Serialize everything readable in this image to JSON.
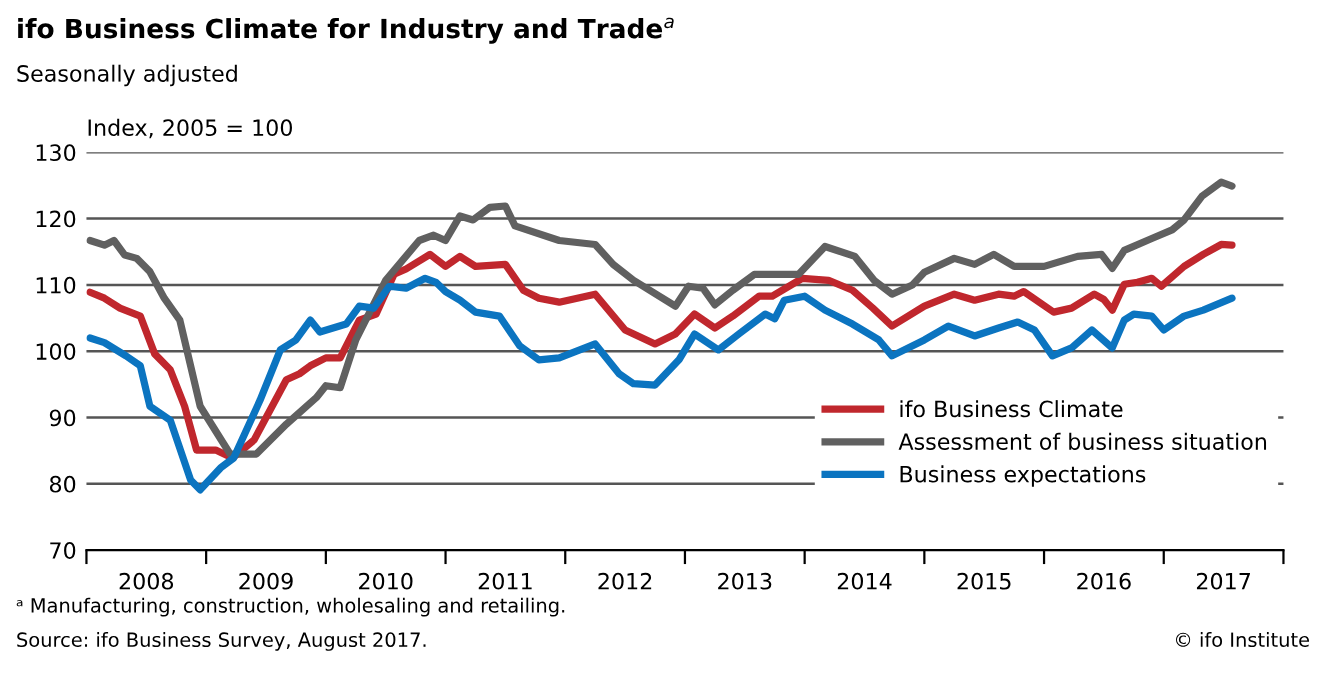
{
  "chart_data": {
    "type": "line",
    "title": "ifo Business Climate for Industry and Trade$^{a}$",
    "subtitle": "Seasonally adjusted",
    "ylabel": "Index, 2005 = 100",
    "annotations": [
      "ᵃ Manufacturing, construction, wholesaling and retailing.",
      "Source: ifo Business Survey, August 2017.",
      "© ifo Institute"
    ],
    "xlim": [
      2008,
      2018
    ],
    "xticks": [
      {
        "value": 2008,
        "label": null
      },
      {
        "value": 2008.5,
        "label": "2008"
      },
      {
        "value": 2009,
        "label": null
      },
      {
        "value": 2009.5,
        "label": "2009"
      },
      {
        "value": 2010,
        "label": null
      },
      {
        "value": 2010.5,
        "label": "2010"
      },
      {
        "value": 2011,
        "label": null
      },
      {
        "value": 2011.5,
        "label": "2011"
      },
      {
        "value": 2012,
        "label": null
      },
      {
        "value": 2012.5,
        "label": "2012"
      },
      {
        "value": 2013,
        "label": null
      },
      {
        "value": 2013.5,
        "label": "2013"
      },
      {
        "value": 2014,
        "label": null
      },
      {
        "value": 2014.5,
        "label": "2014"
      },
      {
        "value": 2015,
        "label": null
      },
      {
        "value": 2015.5,
        "label": "2015"
      },
      {
        "value": 2016,
        "label": null
      },
      {
        "value": 2016.5,
        "label": "2016"
      },
      {
        "value": 2017,
        "label": null
      },
      {
        "value": 2017.5,
        "label": "2017"
      },
      {
        "value": 2018,
        "label": null
      }
    ],
    "ylim": [
      70,
      130
    ],
    "yticks": [
      70,
      80,
      90,
      100,
      110,
      120,
      130
    ],
    "grid": "y",
    "legend": "bottom right",
    "series": [
      {
        "name": "ifo Business Climate",
        "color": "#c0272d",
        "x": [
          2008.03,
          2008.15,
          2008.28,
          2008.45,
          2008.57,
          2008.7,
          2008.82,
          2008.92,
          2009.08,
          2009.22,
          2009.4,
          2009.67,
          2009.78,
          2009.87,
          2010.0,
          2010.12,
          2010.28,
          2010.42,
          2010.57,
          2010.67,
          2010.87,
          2011.0,
          2011.12,
          2011.25,
          2011.5,
          2011.65,
          2011.78,
          2011.95,
          2012.25,
          2012.5,
          2012.75,
          2012.92,
          2013.08,
          2013.25,
          2013.4,
          2013.62,
          2013.73,
          2013.98,
          2014.2,
          2014.4,
          2014.57,
          2014.73,
          2015.0,
          2015.25,
          2015.42,
          2015.62,
          2015.75,
          2015.83,
          2016.08,
          2016.23,
          2016.42,
          2016.5,
          2016.57,
          2016.67,
          2016.78,
          2016.9,
          2016.98,
          2017.17,
          2017.33,
          2017.48,
          2017.57
        ],
        "values": [
          108.9,
          108,
          106.5,
          105.3,
          99.6,
          97.2,
          91.7,
          85.1,
          85.1,
          83.9,
          86.6,
          95.7,
          96.6,
          97.8,
          99,
          99,
          104.7,
          105.6,
          111.6,
          112.4,
          114.6,
          112.8,
          114.3,
          112.8,
          113.1,
          109.2,
          108,
          107.4,
          108.6,
          103.2,
          101.1,
          102.6,
          105.6,
          103.5,
          105.3,
          108.3,
          108.3,
          111,
          110.7,
          109.2,
          106.5,
          103.8,
          106.8,
          108.6,
          107.7,
          108.6,
          108.3,
          109,
          105.9,
          106.5,
          108.6,
          107.8,
          106.2,
          110.1,
          110.4,
          111,
          109.8,
          112.8,
          114.6,
          116.1,
          116
        ]
      },
      {
        "name": "Assessment of business situation",
        "color": "#606060",
        "x": [
          2008.03,
          2008.15,
          2008.23,
          2008.32,
          2008.42,
          2008.53,
          2008.65,
          2008.78,
          2008.95,
          2009.2,
          2009.42,
          2009.67,
          2009.92,
          2010.0,
          2010.12,
          2010.25,
          2010.5,
          2010.78,
          2010.9,
          2011.0,
          2011.12,
          2011.23,
          2011.37,
          2011.5,
          2011.58,
          2011.95,
          2012.25,
          2012.4,
          2012.57,
          2012.92,
          2013.03,
          2013.15,
          2013.25,
          2013.4,
          2013.58,
          2013.95,
          2014.17,
          2014.42,
          2014.58,
          2014.73,
          2014.9,
          2015.0,
          2015.25,
          2015.42,
          2015.58,
          2015.75,
          2016.0,
          2016.28,
          2016.48,
          2016.57,
          2016.67,
          2016.9,
          2017.07,
          2017.17,
          2017.32,
          2017.48,
          2017.57
        ],
        "values": [
          116.7,
          116,
          116.7,
          114.5,
          114,
          112,
          108,
          104.7,
          91.7,
          84.5,
          84.5,
          89,
          93,
          94.8,
          94.5,
          101.7,
          110.7,
          116.7,
          117.5,
          116.7,
          120.4,
          119.8,
          121.7,
          121.9,
          118.9,
          116.7,
          116.1,
          113.1,
          110.7,
          106.8,
          109.8,
          109.5,
          107,
          109.2,
          111.6,
          111.6,
          115.8,
          114.3,
          110.7,
          108.6,
          110,
          111.9,
          114,
          113.1,
          114.6,
          112.8,
          112.8,
          114.3,
          114.6,
          112.5,
          115.2,
          117,
          118.3,
          119.8,
          123.4,
          125.5,
          124.9
        ]
      },
      {
        "name": "Business expectations",
        "color": "#0b74c0",
        "x": [
          2008.03,
          2008.15,
          2008.33,
          2008.45,
          2008.53,
          2008.7,
          2008.87,
          2008.95,
          2009.12,
          2009.23,
          2009.45,
          2009.62,
          2009.75,
          2009.87,
          2009.95,
          2010.17,
          2010.28,
          2010.4,
          2010.53,
          2010.67,
          2010.83,
          2010.92,
          2011.0,
          2011.12,
          2011.25,
          2011.45,
          2011.62,
          2011.78,
          2011.95,
          2012.25,
          2012.45,
          2012.57,
          2012.75,
          2012.95,
          2013.08,
          2013.28,
          2013.45,
          2013.67,
          2013.75,
          2013.83,
          2014.0,
          2014.17,
          2014.4,
          2014.62,
          2014.73,
          2015.0,
          2015.2,
          2015.42,
          2015.62,
          2015.78,
          2015.92,
          2016.07,
          2016.23,
          2016.4,
          2016.57,
          2016.67,
          2016.75,
          2016.9,
          2017.0,
          2017.17,
          2017.33,
          2017.57
        ],
        "values": [
          102,
          101.3,
          99.3,
          97.8,
          91.7,
          89.6,
          80.6,
          79.1,
          82.4,
          83.9,
          92.6,
          100.2,
          101.7,
          104.7,
          102.9,
          104.1,
          106.8,
          106.5,
          109.8,
          109.5,
          111,
          110.4,
          109,
          107.7,
          105.9,
          105.3,
          100.8,
          98.7,
          99,
          101.1,
          96.6,
          95.1,
          94.9,
          98.7,
          102.6,
          100.2,
          102.6,
          105.6,
          104.9,
          107.7,
          108.3,
          106.2,
          104.1,
          101.7,
          99.3,
          101.7,
          103.8,
          102.3,
          103.5,
          104.4,
          103.2,
          99.3,
          100.5,
          103.2,
          100.5,
          104.7,
          105.6,
          105.3,
          103.2,
          105.3,
          106.2,
          108
        ]
      }
    ]
  }
}
